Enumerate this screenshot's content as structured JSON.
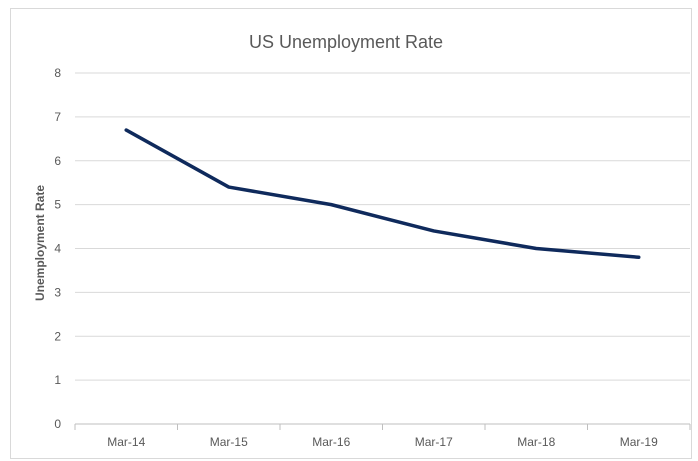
{
  "chart_data": {
    "type": "line",
    "title": "US Unemployment Rate",
    "ylabel": "Unemployment Rate",
    "xlabel": "",
    "categories": [
      "Mar-14",
      "Mar-15",
      "Mar-16",
      "Mar-17",
      "Mar-18",
      "Mar-19"
    ],
    "series": [
      {
        "values": [
          6.7,
          5.4,
          5.0,
          4.4,
          4.0,
          3.8
        ],
        "color": "#0f2a5c"
      }
    ],
    "ylim": [
      0,
      8
    ],
    "yticks": [
      "0",
      "1",
      "2",
      "3",
      "4",
      "5",
      "6",
      "7",
      "8"
    ],
    "grid": true,
    "legend": "none"
  }
}
